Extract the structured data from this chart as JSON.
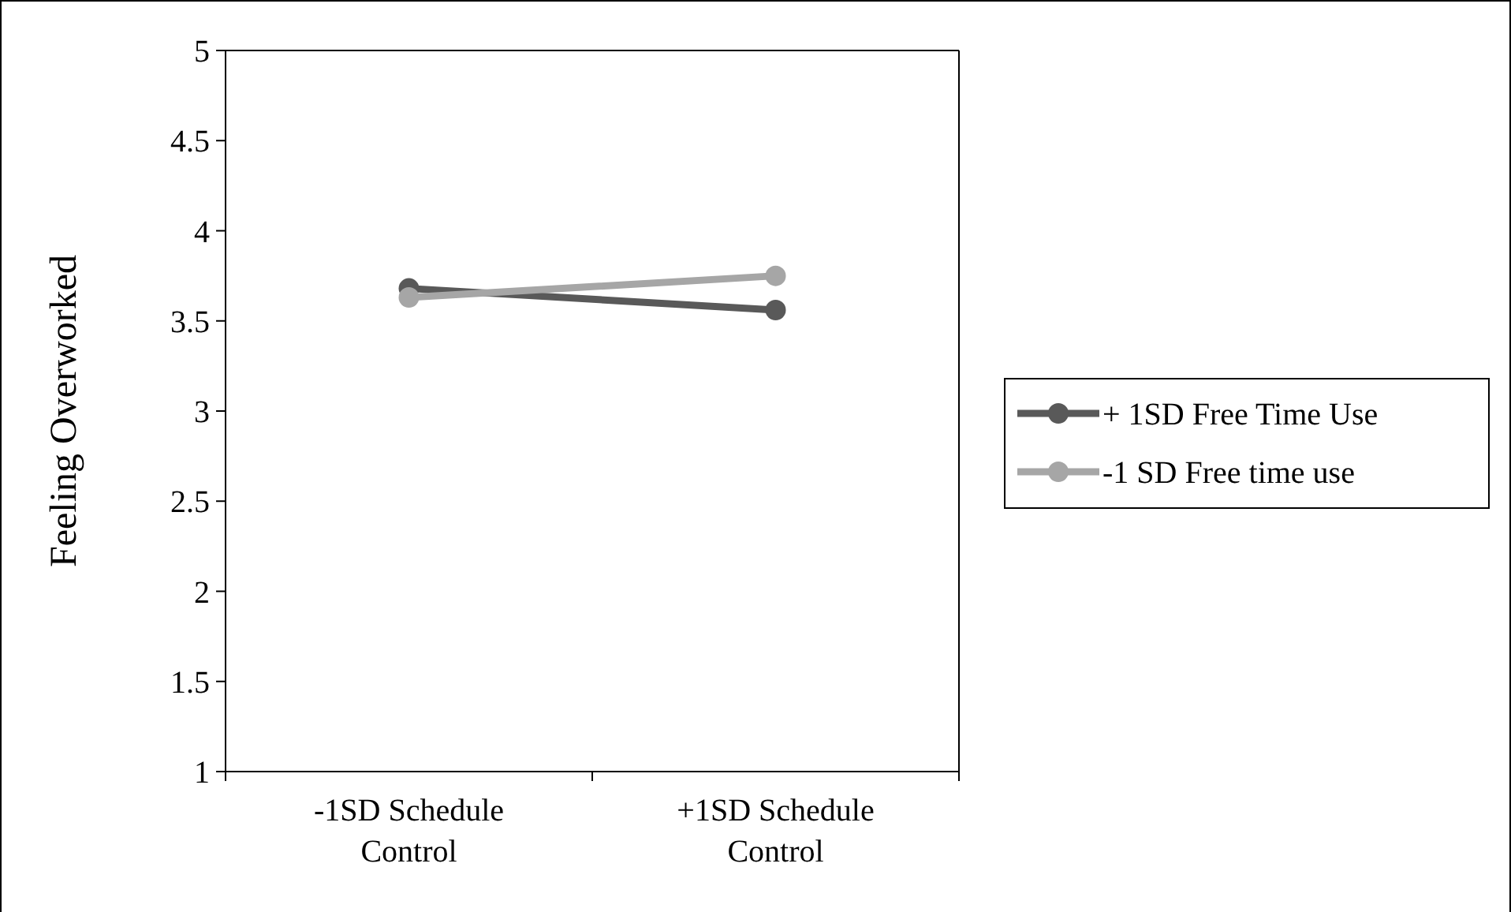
{
  "chart_data": {
    "type": "line",
    "ylabel": "Feeling Overworked",
    "categories": [
      "-1SD Schedule\nControl",
      "+1SD Schedule\nControl"
    ],
    "series": [
      {
        "name": "+ 1SD Free Time Use",
        "color": "#595959",
        "values": [
          3.68,
          3.56
        ]
      },
      {
        "name": "-1 SD Free time use",
        "color": "#a6a6a6",
        "values": [
          3.63,
          3.75
        ]
      }
    ],
    "ylim": [
      1,
      5
    ],
    "yticks": [
      1,
      1.5,
      2,
      2.5,
      3,
      3.5,
      4,
      4.5,
      5
    ],
    "grid": false,
    "legend": "right",
    "marker": "circle",
    "line_style": "solid"
  }
}
